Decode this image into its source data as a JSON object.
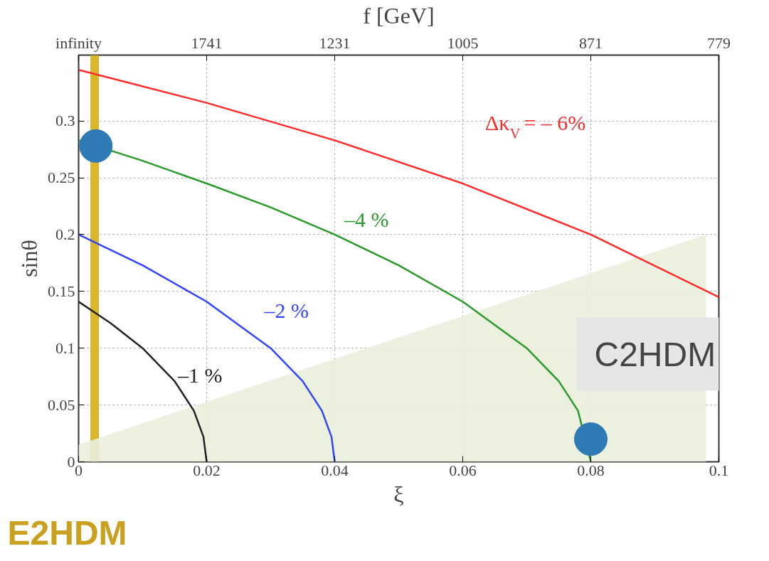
{
  "chart_data": {
    "type": "line",
    "xlabel": "ξ",
    "ylabel": "sinθ",
    "x2label": "f [GeV]",
    "xlim": [
      0,
      0.1
    ],
    "xticks": [
      0,
      0.02,
      0.04,
      0.06,
      0.08,
      0.1
    ],
    "ylim": [
      0,
      0.358
    ],
    "yticks": [
      0,
      0.05,
      0.1,
      0.15,
      0.2,
      0.25,
      0.3
    ],
    "grid": true,
    "line_style": "solid",
    "series": [
      {
        "type": "area",
        "color": "#e9eedb",
        "x": [
          0,
          0.098
        ],
        "values": [
          0.015,
          0.2
        ]
      },
      {
        "color": "#222222",
        "x": [
          0,
          0.005,
          0.01,
          0.015,
          0.018,
          0.0195,
          0.02
        ],
        "values": [
          0.141,
          0.122,
          0.1,
          0.071,
          0.045,
          0.022,
          0
        ]
      },
      {
        "color": "#3344ff",
        "x": [
          0,
          0.01,
          0.02,
          0.03,
          0.035,
          0.038,
          0.0395,
          0.04
        ],
        "values": [
          0.2,
          0.173,
          0.141,
          0.1,
          0.071,
          0.045,
          0.022,
          0
        ]
      },
      {
        "color": "#2a9a2a",
        "x": [
          0,
          0.01,
          0.02,
          0.03,
          0.04,
          0.05,
          0.06,
          0.07,
          0.075,
          0.078,
          0.0795,
          0.08
        ],
        "values": [
          0.283,
          0.265,
          0.245,
          0.224,
          0.2,
          0.173,
          0.141,
          0.1,
          0.071,
          0.045,
          null,
          0
        ]
      },
      {
        "color": "#ff2a2a",
        "x": [
          0,
          0.02,
          0.04,
          0.06,
          0.08,
          0.1
        ],
        "values": [
          0.345,
          0.316,
          0.283,
          0.245,
          0.2,
          0.145
        ]
      },
      {
        "type": "scatter",
        "color": "#2e7ab4",
        "marker": "circle",
        "x": [
          0.0027,
          0.08
        ],
        "values": [
          0.278,
          0.02
        ]
      }
    ],
    "ref_lines": [
      {
        "axis": "x",
        "value": 0.0025,
        "color": "#d9b62a"
      }
    ],
    "annotations": [
      "–1 %",
      "–2 %",
      "–4 %",
      "Δκ$_{V}$ = – 6%",
      "C2HDM",
      "E2HDM",
      "infinity",
      "1741",
      "1231",
      "1005",
      "871",
      "779"
    ]
  }
}
